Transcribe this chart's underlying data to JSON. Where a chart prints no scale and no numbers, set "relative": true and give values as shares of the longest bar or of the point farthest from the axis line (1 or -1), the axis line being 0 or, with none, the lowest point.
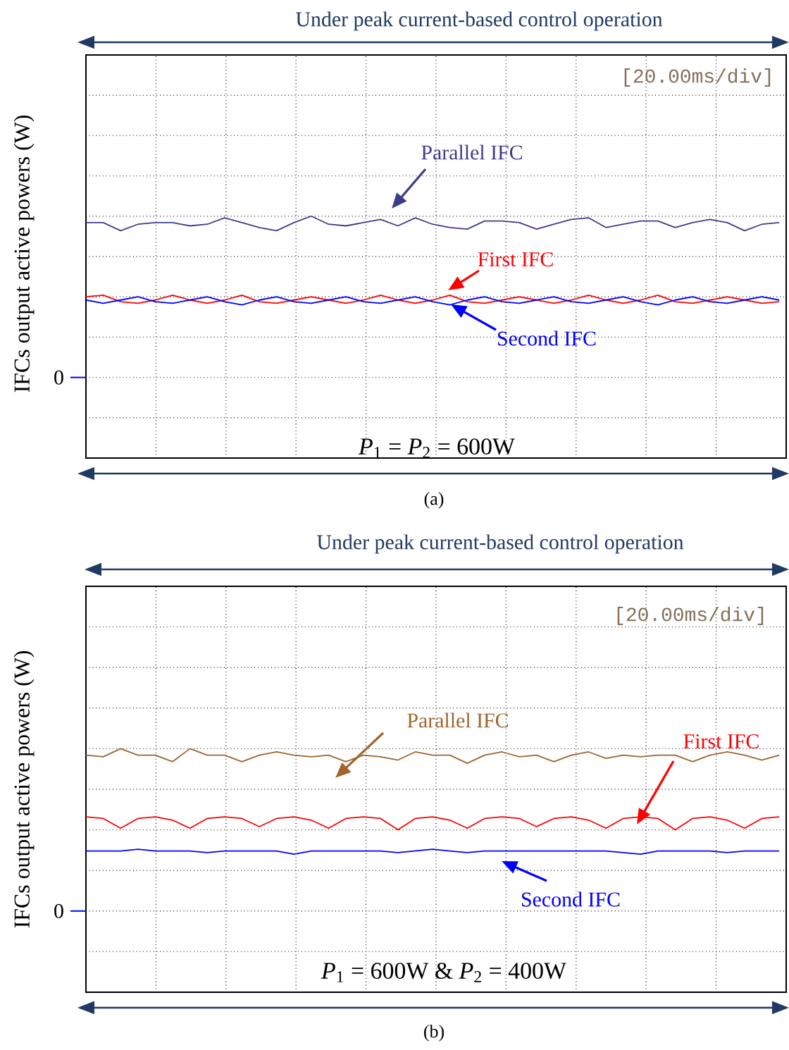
{
  "chart_data": [
    {
      "type": "line",
      "relative": true,
      "grid": true,
      "title": "Under peak current-based control operation",
      "ylabel": "IFCs output active powers (W)",
      "categories": [
        null,
        null,
        null,
        null,
        null,
        null,
        null,
        null,
        null,
        null,
        null,
        null,
        null,
        null,
        null,
        null,
        null,
        null,
        null,
        null,
        null,
        null,
        null,
        null,
        null,
        null,
        null,
        null,
        null,
        null,
        null,
        null,
        null,
        null,
        null,
        null,
        null,
        null,
        null,
        null,
        null
      ],
      "series": [
        {
          "name": "Parallel IFC",
          "color": "#3c3c8c",
          "values": [
            0.96,
            0.96,
            0.91,
            0.95,
            0.96,
            0.96,
            0.94,
            0.95,
            0.99,
            0.96,
            0.93,
            0.91,
            0.96,
            1.0,
            0.95,
            0.94,
            0.96,
            0.98,
            0.94,
            0.99,
            0.95,
            0.93,
            0.92,
            0.97,
            0.97,
            0.96,
            0.92,
            0.95,
            0.98,
            0.99,
            0.93,
            0.95,
            0.97,
            0.97,
            0.93,
            0.96,
            0.98,
            0.96,
            0.91,
            0.95,
            0.96
          ]
        },
        {
          "name": "First IFC",
          "color": "#ff0000",
          "values": [
            0.5,
            0.51,
            0.47,
            0.46,
            0.48,
            0.51,
            0.48,
            0.46,
            0.48,
            0.51,
            0.47,
            0.46,
            0.48,
            0.5,
            0.48,
            0.46,
            0.48,
            0.51,
            0.48,
            0.46,
            0.48,
            0.51,
            0.47,
            0.46,
            0.48,
            0.5,
            0.48,
            0.46,
            0.48,
            0.51,
            0.48,
            0.46,
            0.48,
            0.51,
            0.47,
            0.46,
            0.48,
            0.5,
            0.48,
            0.46,
            0.47
          ]
        },
        {
          "name": "Second IFC",
          "color": "#0000ff",
          "values": [
            0.48,
            0.46,
            0.48,
            0.5,
            0.47,
            0.46,
            0.48,
            0.5,
            0.47,
            0.45,
            0.48,
            0.5,
            0.47,
            0.46,
            0.48,
            0.5,
            0.47,
            0.46,
            0.48,
            0.5,
            0.47,
            0.45,
            0.48,
            0.5,
            0.47,
            0.46,
            0.48,
            0.5,
            0.47,
            0.46,
            0.48,
            0.5,
            0.47,
            0.45,
            0.48,
            0.5,
            0.47,
            0.46,
            0.48,
            0.5,
            0.48
          ]
        }
      ],
      "annotations": [
        "[20.00ms/div]",
        "*P*$_{1}$ = *P*$_{2}$ = 600W",
        "(a)",
        "0"
      ]
    },
    {
      "type": "line",
      "relative": true,
      "grid": true,
      "title": "Under peak current-based control operation",
      "ylabel": "IFCs output active powers (W)",
      "categories": [
        null,
        null,
        null,
        null,
        null,
        null,
        null,
        null,
        null,
        null,
        null,
        null,
        null,
        null,
        null,
        null,
        null,
        null,
        null,
        null,
        null,
        null,
        null,
        null,
        null,
        null,
        null,
        null,
        null,
        null,
        null,
        null,
        null,
        null,
        null,
        null,
        null,
        null,
        null,
        null,
        null
      ],
      "series": [
        {
          "name": "Parallel IFC",
          "color": "#a0642c",
          "values": [
            0.96,
            0.95,
            1.0,
            0.96,
            0.96,
            0.92,
            1.0,
            0.96,
            0.96,
            0.92,
            0.96,
            0.98,
            0.96,
            0.95,
            0.96,
            0.92,
            0.96,
            0.95,
            0.93,
            0.98,
            0.96,
            0.96,
            0.91,
            0.96,
            0.98,
            0.95,
            0.96,
            0.92,
            0.96,
            0.98,
            0.94,
            0.96,
            0.95,
            0.96,
            0.96,
            0.92,
            0.96,
            0.98,
            0.96,
            0.93,
            0.96
          ]
        },
        {
          "name": "First IFC",
          "color": "#ff0000",
          "values": [
            0.58,
            0.57,
            0.51,
            0.57,
            0.58,
            0.56,
            0.51,
            0.57,
            0.58,
            0.57,
            0.52,
            0.57,
            0.58,
            0.56,
            0.51,
            0.57,
            0.58,
            0.57,
            0.5,
            0.57,
            0.58,
            0.56,
            0.51,
            0.57,
            0.58,
            0.57,
            0.52,
            0.57,
            0.58,
            0.56,
            0.51,
            0.57,
            0.58,
            0.57,
            0.5,
            0.57,
            0.58,
            0.56,
            0.51,
            0.57,
            0.58
          ]
        },
        {
          "name": "Second IFC",
          "color": "#0000ff",
          "values": [
            0.37,
            0.37,
            0.37,
            0.38,
            0.37,
            0.37,
            0.37,
            0.36,
            0.37,
            0.37,
            0.37,
            0.37,
            0.35,
            0.37,
            0.37,
            0.37,
            0.37,
            0.37,
            0.36,
            0.37,
            0.38,
            0.37,
            0.36,
            0.37,
            0.37,
            0.37,
            0.37,
            0.37,
            0.37,
            0.37,
            0.37,
            0.36,
            0.35,
            0.37,
            0.37,
            0.37,
            0.37,
            0.36,
            0.37,
            0.37,
            0.37
          ]
        }
      ],
      "annotations": [
        "[20.00ms/div]",
        "*P*$_{1}$ = 600W  & *P*$_{2}$ = 400W",
        "(b)",
        "0"
      ]
    }
  ]
}
